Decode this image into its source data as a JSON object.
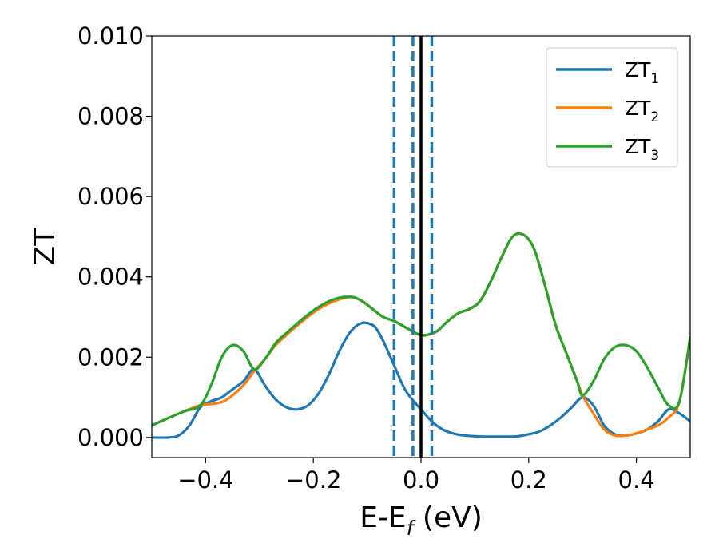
{
  "chart_data": {
    "type": "line",
    "xlabel_main": "E-E",
    "xlabel_sub": "f",
    "xlabel_tail": " (eV)",
    "ylabel": "ZT",
    "xlim": [
      -0.5,
      0.5
    ],
    "ylim": [
      -0.0005,
      0.01
    ],
    "x_ticks": [
      -0.4,
      -0.2,
      0.0,
      0.2,
      0.4
    ],
    "x_tick_labels": [
      "−0.4",
      "−0.2",
      "0.0",
      "0.2",
      "0.4"
    ],
    "y_ticks": [
      0.0,
      0.002,
      0.004,
      0.006,
      0.008,
      0.01
    ],
    "y_tick_labels": [
      "0.000",
      "0.002",
      "0.004",
      "0.006",
      "0.008",
      "0.010"
    ],
    "grid": false,
    "legend_position": "top-right",
    "vlines_dashed": {
      "x": [
        -0.05,
        -0.015,
        0.02
      ],
      "color": "#1f77b4"
    },
    "vline_solid": {
      "x": 0.0,
      "color": "#000000"
    },
    "series": [
      {
        "name": "ZT",
        "name_sub": "1",
        "color": "#1f77b4",
        "x": [
          -0.5,
          -0.47,
          -0.45,
          -0.43,
          -0.41,
          -0.39,
          -0.37,
          -0.35,
          -0.33,
          -0.31,
          -0.29,
          -0.27,
          -0.25,
          -0.23,
          -0.21,
          -0.19,
          -0.17,
          -0.15,
          -0.13,
          -0.11,
          -0.09,
          -0.08,
          -0.07,
          -0.05,
          -0.03,
          -0.01,
          0.0,
          0.02,
          0.04,
          0.06,
          0.08,
          0.1,
          0.12,
          0.14,
          0.16,
          0.18,
          0.2,
          0.22,
          0.24,
          0.26,
          0.28,
          0.3,
          0.32,
          0.34,
          0.36,
          0.38,
          0.4,
          0.42,
          0.44,
          0.46,
          0.48,
          0.5
        ],
        "y": [
          0.0,
          0.0,
          5e-05,
          0.0003,
          0.00075,
          0.0009,
          0.001,
          0.0012,
          0.0014,
          0.0017,
          0.0013,
          0.00095,
          0.00075,
          0.0007,
          0.0008,
          0.0011,
          0.0016,
          0.0022,
          0.00265,
          0.00285,
          0.0028,
          0.00265,
          0.0024,
          0.0018,
          0.0012,
          0.00085,
          0.0007,
          0.0004,
          0.0002,
          0.0001,
          5e-05,
          3e-05,
          2e-05,
          2e-05,
          2e-05,
          3e-05,
          8e-05,
          0.00015,
          0.0003,
          0.0005,
          0.00075,
          0.001,
          0.0008,
          0.0003,
          8e-05,
          5e-05,
          0.0001,
          0.0002,
          0.0004,
          0.0007,
          0.0006,
          0.0004
        ]
      },
      {
        "name": "ZT",
        "name_sub": "2",
        "color": "#ff7f0e",
        "x": [
          -0.5,
          -0.47,
          -0.44,
          -0.41,
          -0.38,
          -0.36,
          -0.33,
          -0.31,
          -0.29,
          -0.27,
          -0.25,
          -0.22,
          -0.19,
          -0.16,
          -0.13,
          -0.11,
          -0.09,
          -0.07,
          -0.05,
          -0.03,
          -0.01,
          0.0,
          0.01,
          0.03,
          0.05,
          0.07,
          0.09,
          0.11,
          0.13,
          0.15,
          0.17,
          0.19,
          0.21,
          0.23,
          0.25,
          0.27,
          0.29,
          0.3,
          0.32,
          0.34,
          0.36,
          0.38,
          0.4,
          0.42,
          0.44,
          0.46,
          0.48,
          0.5
        ],
        "y": [
          0.0003,
          0.00048,
          0.00065,
          0.0008,
          0.00085,
          0.00095,
          0.0013,
          0.00165,
          0.00195,
          0.0023,
          0.00255,
          0.0029,
          0.0032,
          0.0034,
          0.0035,
          0.0034,
          0.0032,
          0.003,
          0.0029,
          0.00275,
          0.0026,
          0.00255,
          0.00255,
          0.00265,
          0.0029,
          0.0031,
          0.0032,
          0.0034,
          0.0039,
          0.0045,
          0.005,
          0.00505,
          0.0047,
          0.0038,
          0.0028,
          0.0021,
          0.0014,
          0.00105,
          0.0006,
          0.0002,
          5e-05,
          5e-05,
          0.0001,
          0.0002,
          0.0003,
          0.0005,
          0.0009,
          0.0025
        ]
      },
      {
        "name": "ZT",
        "name_sub": "3",
        "color": "#2ca02c",
        "x": [
          -0.5,
          -0.47,
          -0.44,
          -0.41,
          -0.39,
          -0.37,
          -0.35,
          -0.33,
          -0.31,
          -0.29,
          -0.27,
          -0.25,
          -0.22,
          -0.19,
          -0.16,
          -0.13,
          -0.11,
          -0.09,
          -0.07,
          -0.05,
          -0.03,
          -0.01,
          0.0,
          0.01,
          0.03,
          0.05,
          0.07,
          0.09,
          0.11,
          0.13,
          0.15,
          0.17,
          0.19,
          0.21,
          0.23,
          0.25,
          0.27,
          0.29,
          0.3,
          0.32,
          0.34,
          0.36,
          0.38,
          0.4,
          0.42,
          0.44,
          0.46,
          0.48,
          0.5
        ],
        "y": [
          0.0003,
          0.00048,
          0.00065,
          0.0008,
          0.0013,
          0.002,
          0.0023,
          0.00215,
          0.0017,
          0.00195,
          0.00235,
          0.0026,
          0.00295,
          0.00325,
          0.00345,
          0.0035,
          0.0034,
          0.0032,
          0.003,
          0.0029,
          0.00275,
          0.0026,
          0.00255,
          0.00255,
          0.00265,
          0.0029,
          0.0031,
          0.0032,
          0.0034,
          0.0039,
          0.0045,
          0.005,
          0.00505,
          0.0047,
          0.0038,
          0.0028,
          0.0021,
          0.0014,
          0.00105,
          0.0014,
          0.00195,
          0.00225,
          0.0023,
          0.00215,
          0.00175,
          0.00125,
          0.0008,
          0.0009,
          0.0025
        ]
      }
    ]
  }
}
